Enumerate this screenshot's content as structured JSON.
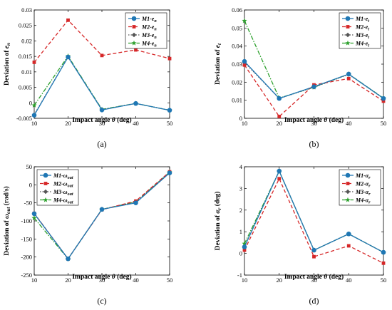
{
  "chart_data": [
    {
      "type": "line",
      "panel_label": "(a)",
      "xlabel": "Impact angle θ (deg)",
      "ylabel": "Deviation of e_n",
      "x": [
        10,
        20,
        30,
        40,
        50
      ],
      "ylim": [
        -0.005,
        0.03
      ],
      "xticks": [
        "10",
        "20",
        "30",
        "40",
        "50"
      ],
      "yticks": [
        "-0.005",
        "0",
        "0.005",
        "0.01",
        "0.015",
        "0.02",
        "0.025",
        "0.03"
      ],
      "series": [
        {
          "name": "M1-e_n",
          "color": "#1f77b4",
          "dash": "",
          "marker": "circle",
          "values": [
            -0.004,
            0.0148,
            -0.0023,
            -0.0002,
            -0.0024
          ]
        },
        {
          "name": "M2-e_n",
          "color": "#d62728",
          "dash": "5,3",
          "marker": "square",
          "values": [
            0.0131,
            0.0267,
            0.0153,
            0.0171,
            0.0143
          ]
        },
        {
          "name": "M3-e_n",
          "color": "#555555",
          "dash": "1.5,2",
          "marker": "diamond",
          "values": [
            -0.0038,
            0.0148,
            -0.0022,
            -0.0002,
            -0.0024
          ]
        },
        {
          "name": "M4-e_n",
          "color": "#2ca02c",
          "dash": "6,2,1.5,2",
          "marker": "star",
          "values": [
            -0.0008,
            0.0151,
            -0.0021,
            -0.0002,
            -0.0024
          ]
        }
      ],
      "legend": "top-right"
    },
    {
      "type": "line",
      "panel_label": "(b)",
      "xlabel": "Impact angle θ (deg)",
      "ylabel": "Deviation of e_t",
      "x": [
        10,
        20,
        30,
        40,
        50
      ],
      "ylim": [
        0,
        0.06
      ],
      "xticks": [
        "10",
        "20",
        "30",
        "40",
        "50"
      ],
      "yticks": [
        "0",
        "0.01",
        "0.02",
        "0.03",
        "0.04",
        "0.05",
        "0.06"
      ],
      "series": [
        {
          "name": "M1-e_t",
          "color": "#1f77b4",
          "dash": "",
          "marker": "circle",
          "values": [
            0.0315,
            0.011,
            0.0175,
            0.0245,
            0.011
          ]
        },
        {
          "name": "M2-e_t",
          "color": "#d62728",
          "dash": "5,3",
          "marker": "square",
          "values": [
            0.0295,
            0.001,
            0.0185,
            0.022,
            0.0095
          ]
        },
        {
          "name": "M3-e_t",
          "color": "#555555",
          "dash": "1.5,2",
          "marker": "diamond",
          "values": [
            0.031,
            0.011,
            0.0172,
            0.0243,
            0.011
          ]
        },
        {
          "name": "M4-e_t",
          "color": "#2ca02c",
          "dash": "6,2,1.5,2",
          "marker": "star",
          "values": [
            0.054,
            0.0112,
            0.0172,
            0.0245,
            0.0112
          ]
        }
      ],
      "legend": "top-right"
    },
    {
      "type": "line",
      "panel_label": "(c)",
      "xlabel": "Impact angle θ (deg)",
      "ylabel": "Deviation of ω_out (rad/s)",
      "x": [
        10,
        20,
        30,
        40,
        50
      ],
      "ylim": [
        -250,
        50
      ],
      "xticks": [
        "10",
        "20",
        "30",
        "40",
        "50"
      ],
      "yticks": [
        "-250",
        "-200",
        "-150",
        "-100",
        "-50",
        "0",
        "50"
      ],
      "series": [
        {
          "name": "M1-ω_out",
          "color": "#1f77b4",
          "dash": "",
          "marker": "circle",
          "values": [
            -80,
            -205,
            -68,
            -50,
            33
          ]
        },
        {
          "name": "M2-ω_out",
          "color": "#d62728",
          "dash": "5,3",
          "marker": "square",
          "values": [
            -79,
            -205,
            -69,
            -45,
            36
          ]
        },
        {
          "name": "M3-ω_out",
          "color": "#555555",
          "dash": "1.5,2",
          "marker": "diamond",
          "values": [
            -79,
            -205,
            -68,
            -48,
            34
          ]
        },
        {
          "name": "M4-ω_out",
          "color": "#2ca02c",
          "dash": "6,2,1.5,2",
          "marker": "star",
          "values": [
            -92,
            -205,
            -68,
            -47,
            35
          ]
        }
      ],
      "legend": "top-left"
    },
    {
      "type": "line",
      "panel_label": "(d)",
      "xlabel": "Impact angle θ (deg)",
      "ylabel": "Deviation of α_r (deg)",
      "x": [
        10,
        20,
        30,
        40,
        50
      ],
      "ylim": [
        -1,
        4
      ],
      "xticks": [
        "10",
        "20",
        "30",
        "40",
        "50"
      ],
      "yticks": [
        "-1",
        "0",
        "1",
        "2",
        "3",
        "4"
      ],
      "series": [
        {
          "name": "M1-α_r",
          "color": "#1f77b4",
          "dash": "",
          "marker": "circle",
          "values": [
            0.3,
            3.8,
            0.15,
            0.9,
            0.05
          ]
        },
        {
          "name": "M2-α_r",
          "color": "#d62728",
          "dash": "5,3",
          "marker": "square",
          "values": [
            0.15,
            3.45,
            -0.15,
            0.35,
            -0.45
          ]
        },
        {
          "name": "M3-α_r",
          "color": "#555555",
          "dash": "1.5,2",
          "marker": "diamond",
          "values": [
            0.3,
            3.8,
            0.15,
            0.9,
            0.05
          ]
        },
        {
          "name": "M4-α_r",
          "color": "#2ca02c",
          "dash": "6,2,1.5,2",
          "marker": "star",
          "values": [
            0.45,
            3.8,
            0.15,
            0.9,
            0.05
          ]
        }
      ],
      "legend": "top-right"
    }
  ]
}
